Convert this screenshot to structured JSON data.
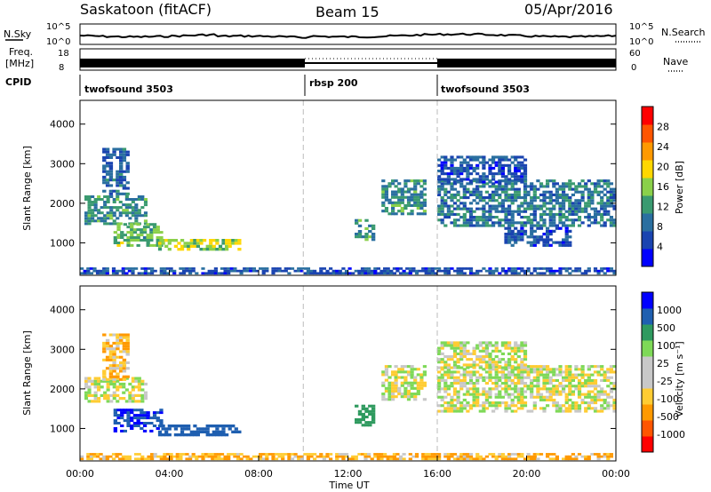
{
  "header": {
    "station": "Saskatoon (fitACF)",
    "beam": "Beam 15",
    "date": "05/Apr/2016"
  },
  "noise_panel": {
    "left_label": "N.Sky",
    "right_label": "N.Search",
    "right_ticks": [
      "10^5",
      "10^0"
    ],
    "left_ticks": [
      "10^5",
      "10^0"
    ]
  },
  "freq_panel": {
    "left_label_1": "Freq.",
    "left_label_2": "[MHz]",
    "left_ticks": [
      "18",
      "8"
    ],
    "right_ticks": [
      "60",
      "0"
    ],
    "right_label": "Nave"
  },
  "cpid_panel": {
    "label": "CPID",
    "segments": [
      {
        "name": "twofsound 3503",
        "start_hour": 0,
        "end_hour": 10
      },
      {
        "name": "rbsp 200",
        "start_hour": 10,
        "end_hour": 16
      },
      {
        "name": "twofsound 3503",
        "start_hour": 16,
        "end_hour": 24
      }
    ]
  },
  "colors": {
    "power_scale": [
      "#0000ff",
      "#1a44b0",
      "#2a6fa0",
      "#3a9a70",
      "#8ad04a",
      "#ffd700",
      "#ff9900",
      "#ff5500",
      "#ff0000"
    ],
    "velocity_scale": [
      "#ff0000",
      "#ff5500",
      "#ff9900",
      "#ffcc33",
      "#c8c8c8",
      "#c8c8c8",
      "#7ed957",
      "#2f9a5f",
      "#1f5fb0",
      "#0000ff"
    ]
  },
  "chart_data": [
    {
      "type": "heatmap",
      "name": "power",
      "title": "",
      "xlabel": "",
      "ylabel": "Slant Range [km]",
      "xlim": [
        0,
        24
      ],
      "ylim": [
        180,
        4600
      ],
      "xticks": [
        "00:00",
        "04:00",
        "08:00",
        "12:00",
        "16:00",
        "20:00",
        "00:00"
      ],
      "yticks": [
        1000,
        2000,
        3000,
        4000
      ],
      "colorbar": {
        "label": "Power [dB]",
        "ticks": [
          "4",
          "8",
          "12",
          "16",
          "20",
          "24",
          "28"
        ],
        "range": [
          0,
          30
        ]
      },
      "regions": [
        {
          "t0": 0.2,
          "t1": 3.0,
          "r0": 1450,
          "r1": 2200,
          "level": 10
        },
        {
          "t0": 1.5,
          "t1": 3.7,
          "r0": 900,
          "r1": 1500,
          "level": 13
        },
        {
          "t0": 3.5,
          "t1": 7.2,
          "r0": 800,
          "r1": 1100,
          "level": 16
        },
        {
          "t0": 1.0,
          "t1": 2.2,
          "r0": 2200,
          "r1": 3400,
          "level": 6
        },
        {
          "t0": 12.3,
          "t1": 13.2,
          "r0": 1050,
          "r1": 1600,
          "level": 11
        },
        {
          "t0": 13.5,
          "t1": 15.5,
          "r0": 1700,
          "r1": 2600,
          "level": 10
        },
        {
          "t0": 16.0,
          "t1": 24.0,
          "r0": 1400,
          "r1": 2600,
          "level": 8
        },
        {
          "t0": 16.0,
          "t1": 20.0,
          "r0": 2500,
          "r1": 3200,
          "level": 5
        },
        {
          "t0": 19.0,
          "t1": 22.0,
          "r0": 900,
          "r1": 1400,
          "level": 5
        },
        {
          "t0": 0.0,
          "t1": 24.0,
          "r0": 200,
          "r1": 380,
          "level": 5
        }
      ],
      "data_gap_markers_hour": [
        10,
        16
      ]
    },
    {
      "type": "heatmap",
      "name": "velocity",
      "title": "",
      "xlabel": "Time UT",
      "ylabel": "Slant Range [km]",
      "xlim": [
        0,
        24
      ],
      "ylim": [
        180,
        4600
      ],
      "xticks": [
        "00:00",
        "04:00",
        "08:00",
        "12:00",
        "16:00",
        "20:00",
        "00:00"
      ],
      "yticks": [
        1000,
        2000,
        3000,
        4000
      ],
      "colorbar": {
        "label": "Velocity [m s⁻¹]",
        "ticks": [
          "1000",
          "500",
          "100",
          "25",
          "-25",
          "-100",
          "-500",
          "-1000"
        ],
        "range": [
          -1200,
          1200
        ]
      },
      "regions": [
        {
          "t0": 0.2,
          "t1": 3.0,
          "r0": 1650,
          "r1": 2300,
          "v": 0
        },
        {
          "t0": 1.5,
          "t1": 3.7,
          "r0": 900,
          "r1": 1500,
          "v": 700
        },
        {
          "t0": 3.5,
          "t1": 7.2,
          "r0": 800,
          "r1": 1100,
          "v": 600
        },
        {
          "t0": 1.0,
          "t1": 2.2,
          "r0": 2200,
          "r1": 3400,
          "v": -80
        },
        {
          "t0": 12.3,
          "t1": 13.2,
          "r0": 1050,
          "r1": 1600,
          "v": 200
        },
        {
          "t0": 13.5,
          "t1": 15.5,
          "r0": 1700,
          "r1": 2600,
          "v": 0
        },
        {
          "t0": 16.0,
          "t1": 24.0,
          "r0": 1400,
          "r1": 2600,
          "v": 0
        },
        {
          "t0": 16.0,
          "t1": 20.0,
          "r0": 2500,
          "r1": 3200,
          "v": 0
        },
        {
          "t0": 0.0,
          "t1": 24.0,
          "r0": 200,
          "r1": 380,
          "v": -100
        }
      ],
      "data_gap_markers_hour": [
        10,
        16
      ]
    }
  ]
}
